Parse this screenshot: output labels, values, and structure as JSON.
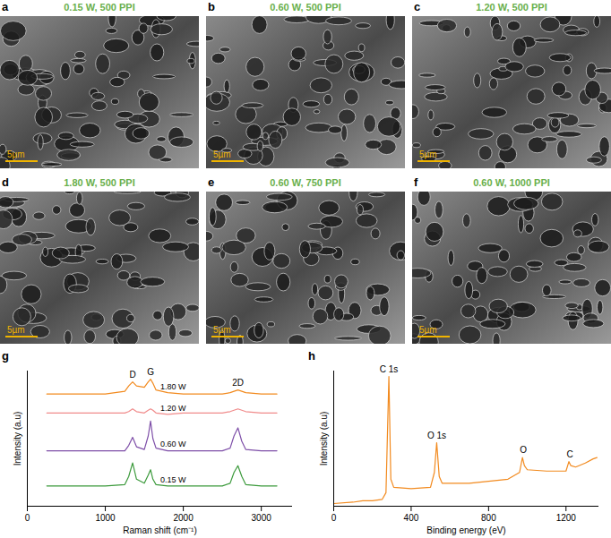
{
  "images": [
    {
      "panel": "a",
      "title": "0.15 W, 500 PPI",
      "scale_bar": "5µm"
    },
    {
      "panel": "b",
      "title": "0.60 W, 500 PPI",
      "scale_bar": "5µm"
    },
    {
      "panel": "c",
      "title": "1.20 W, 500 PPI",
      "scale_bar": "5µm"
    },
    {
      "panel": "d",
      "title": "1.80 W, 500 PPI",
      "scale_bar": "5µm"
    },
    {
      "panel": "e",
      "title": "0.60 W, 750 PPI",
      "scale_bar": "5µm"
    },
    {
      "panel": "f",
      "title": "0.60 W, 1000 PPI",
      "scale_bar": "5µm"
    }
  ],
  "chart_data": [
    {
      "panel": "g",
      "type": "line",
      "x_label": "Raman shift (cm⁻¹)",
      "y_label": "Intensity (a.u)",
      "x": [
        250,
        1000,
        1250,
        1300,
        1350,
        1400,
        1500,
        1550,
        1580,
        1610,
        1650,
        1800,
        2000,
        2500,
        2600,
        2650,
        2700,
        2750,
        2800,
        3000,
        3200
      ],
      "series": [
        {
          "name": "1.80 W",
          "color": "#f28a1e",
          "values": [
            83,
            83,
            85,
            89,
            92,
            89,
            88,
            92,
            94,
            91,
            86,
            84,
            83,
            83,
            84,
            85,
            86,
            85,
            84,
            83,
            83
          ]
        },
        {
          "name": "1.20 W",
          "color": "#f08a8a",
          "values": [
            69,
            69,
            69,
            70,
            72,
            70,
            69,
            71,
            72,
            71,
            69,
            68,
            69,
            69,
            70,
            71,
            72,
            71,
            70,
            69,
            69
          ]
        },
        {
          "name": "0.60 W",
          "color": "#7e4fa8",
          "values": [
            41,
            41,
            41,
            45,
            51,
            44,
            42,
            52,
            63,
            50,
            43,
            41,
            41,
            41,
            43,
            52,
            58,
            48,
            42,
            41,
            41
          ]
        },
        {
          "name": "0.15 W",
          "color": "#3c9a3c",
          "values": [
            15,
            15,
            16,
            22,
            32,
            20,
            17,
            23,
            27,
            20,
            16,
            15,
            15,
            15,
            17,
            25,
            30,
            22,
            16,
            15,
            15
          ]
        }
      ],
      "xlim": [
        0,
        3400
      ],
      "xticks": [
        0,
        1000,
        2000,
        3000
      ],
      "ylim": [
        0,
        100
      ],
      "tick_labels": "x",
      "annotations": [
        {
          "text": "D",
          "x": 1350
        },
        {
          "text": "G",
          "x": 1580
        },
        {
          "text": "2D",
          "x": 2700
        }
      ]
    },
    {
      "panel": "h",
      "type": "line",
      "x_label": "Binding energy (eV)",
      "y_label": "Intensity (a.u)",
      "x": [
        0,
        100,
        150,
        200,
        250,
        270,
        285,
        295,
        310,
        400,
        500,
        520,
        532,
        545,
        560,
        700,
        900,
        960,
        975,
        985,
        1000,
        1100,
        1200,
        1215,
        1225,
        1250,
        1300,
        1340,
        1360
      ],
      "values": [
        2,
        3,
        4,
        4,
        5,
        10,
        96,
        20,
        14,
        13,
        14,
        25,
        47,
        22,
        17,
        17,
        20,
        25,
        36,
        30,
        27,
        26,
        26,
        33,
        30,
        29,
        32,
        35,
        36
      ],
      "color": "#f28a1e",
      "xlim": [
        0,
        1370
      ],
      "xticks": [
        0,
        400,
        800,
        1200
      ],
      "ylim": [
        0,
        100
      ],
      "tick_labels": "x",
      "annotations": [
        {
          "text": "C 1s",
          "x": 285
        },
        {
          "text": "O 1s",
          "x": 532
        },
        {
          "text": "O",
          "x": 980
        },
        {
          "text": "C",
          "x": 1220
        }
      ]
    }
  ]
}
